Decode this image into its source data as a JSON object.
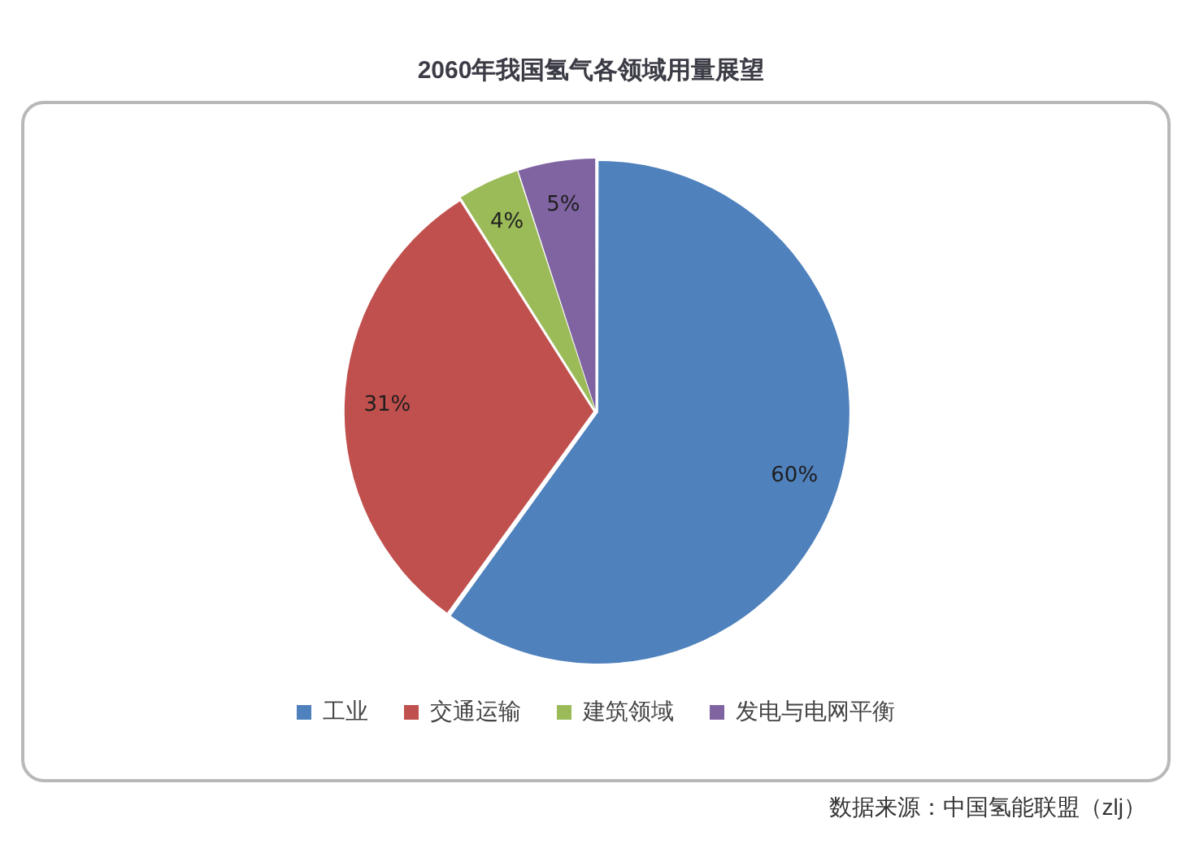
{
  "chart_data": {
    "type": "pie",
    "title": "2060年我国氢气各领域用量展望",
    "categories": [
      "工业",
      "交通运输",
      "建筑领域",
      "发电与电网平衡"
    ],
    "values": [
      60,
      31,
      4,
      5
    ],
    "colors": [
      "#4f81bd",
      "#c0504d",
      "#9bbb59",
      "#8064a2"
    ],
    "value_labels": [
      "60%",
      "31%",
      "4%",
      "5%"
    ],
    "legend": "bottom",
    "annotations": [
      "数据来源：中国氢能联盟（zlj）"
    ]
  }
}
